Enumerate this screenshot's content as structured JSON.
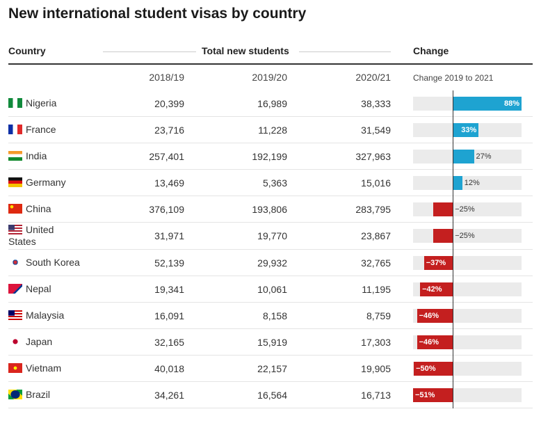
{
  "table": {
    "title": "New international student visas by country",
    "header": {
      "country": "Country",
      "group": "Total new students",
      "change": "Change"
    },
    "columns": [
      "2018/19",
      "2019/20",
      "2020/21",
      "Change 2019 to 2021"
    ],
    "rows": [
      {
        "country": "Nigeria",
        "y2018": "20,399",
        "y2019": "16,989",
        "y2020": "38,333",
        "change": 88,
        "change_label": "88%"
      },
      {
        "country": "France",
        "y2018": "23,716",
        "y2019": "11,228",
        "y2020": "31,549",
        "change": 33,
        "change_label": "33%"
      },
      {
        "country": "India",
        "y2018": "257,401",
        "y2019": "192,199",
        "y2020": "327,963",
        "change": 27,
        "change_label": "27%"
      },
      {
        "country": "Germany",
        "y2018": "13,469",
        "y2019": "5,363",
        "y2020": "15,016",
        "change": 12,
        "change_label": "12%"
      },
      {
        "country": "China",
        "y2018": "376,109",
        "y2019": "193,806",
        "y2020": "283,795",
        "change": -25,
        "change_label": "−25%"
      },
      {
        "country": "United States",
        "y2018": "31,971",
        "y2019": "19,770",
        "y2020": "23,867",
        "change": -25,
        "change_label": "−25%"
      },
      {
        "country": "South Korea",
        "y2018": "52,139",
        "y2019": "29,932",
        "y2020": "32,765",
        "change": -37,
        "change_label": "−37%"
      },
      {
        "country": "Nepal",
        "y2018": "19,341",
        "y2019": "10,061",
        "y2020": "11,195",
        "change": -42,
        "change_label": "−42%"
      },
      {
        "country": "Malaysia",
        "y2018": "16,091",
        "y2019": "8,158",
        "y2020": "8,759",
        "change": -46,
        "change_label": "−46%"
      },
      {
        "country": "Japan",
        "y2018": "32,165",
        "y2019": "15,919",
        "y2020": "17,303",
        "change": -46,
        "change_label": "−46%"
      },
      {
        "country": "Vietnam",
        "y2018": "40,018",
        "y2019": "22,157",
        "y2020": "19,905",
        "change": -50,
        "change_label": "−50%"
      },
      {
        "country": "Brazil",
        "y2018": "34,261",
        "y2019": "16,564",
        "y2020": "16,713",
        "change": -51,
        "change_label": "−51%"
      }
    ]
  }
}
